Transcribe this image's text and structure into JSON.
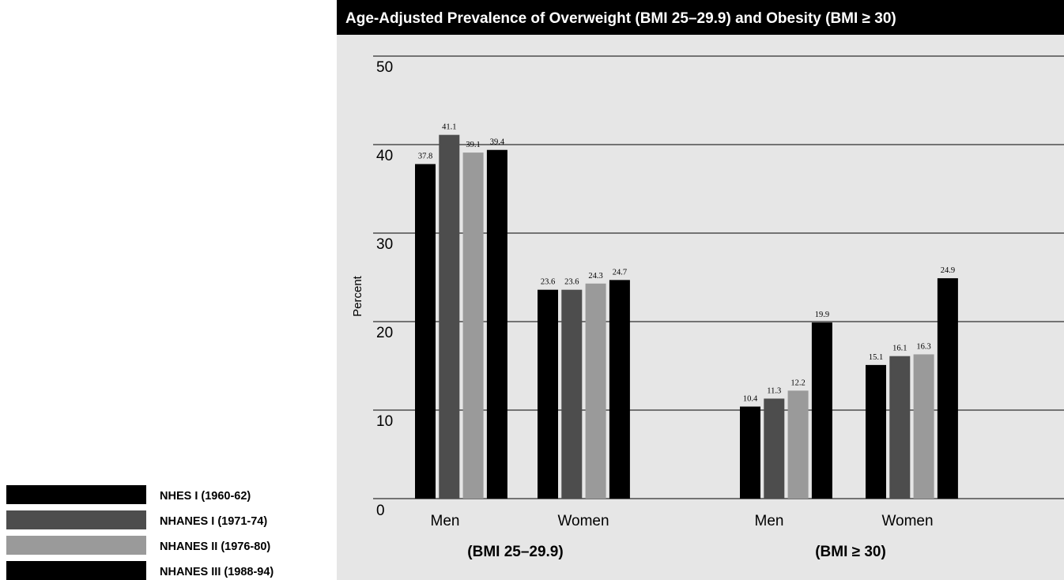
{
  "chart_data": {
    "type": "bar",
    "title": "Age-Adjusted Prevalence of Overweight (BMI 25–29.9) and Obesity (BMI ≥ 30)",
    "ylabel": "Percent",
    "ylim": [
      0,
      50
    ],
    "yticks": [
      "0",
      "10",
      "20",
      "30",
      "40",
      "50"
    ],
    "grid": true,
    "legend_position": "bottom-left",
    "groups": [
      {
        "label": "(BMI 25–29.9)",
        "categories": [
          {
            "label": "Men",
            "values": [
              37.8,
              41.1,
              39.1,
              39.4
            ],
            "labels": [
              "37.8",
              "41.1",
              "39.1",
              "39.4"
            ]
          },
          {
            "label": "Women",
            "values": [
              23.6,
              23.6,
              24.3,
              24.7
            ],
            "labels": [
              "23.6",
              "23.6",
              "24.3",
              "24.7"
            ]
          }
        ]
      },
      {
        "label": "(BMI ≥ 30)",
        "categories": [
          {
            "label": "Men",
            "values": [
              10.4,
              11.3,
              12.2,
              19.9
            ],
            "labels": [
              "10.4",
              "11.3",
              "12.2",
              "19.9"
            ]
          },
          {
            "label": "Women",
            "values": [
              15.1,
              16.1,
              16.3,
              24.9
            ],
            "labels": [
              "15.1",
              "16.1",
              "16.3",
              "24.9"
            ]
          }
        ]
      }
    ],
    "series": [
      {
        "name": "NHES I (1960-62)",
        "color": "#000000"
      },
      {
        "name": "NHANES I (1971-74)",
        "color": "#4d4d4d"
      },
      {
        "name": "NHANES II (1976-80)",
        "color": "#9a9a9a"
      },
      {
        "name": "NHANES III (1988-94)",
        "color": "#000000"
      }
    ],
    "colors": {
      "title_bar": "#000000",
      "plot_background": "#e6e6e6",
      "gridline": "#000000"
    }
  }
}
